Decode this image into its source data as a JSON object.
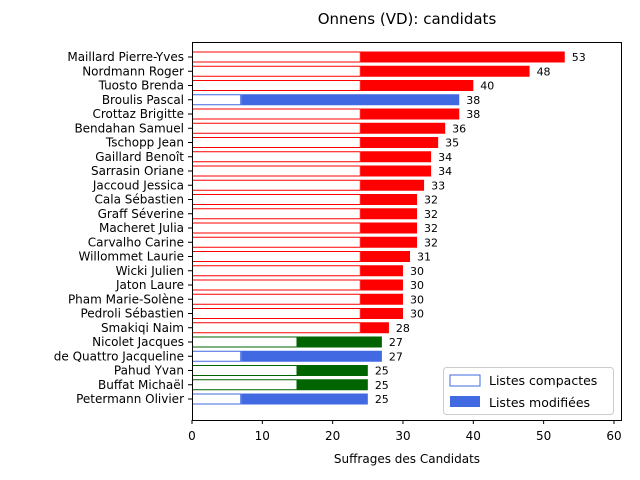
{
  "chart_data": {
    "type": "bar",
    "orientation": "horizontal",
    "title": "Onnens (VD): candidats",
    "xlabel": "Suffrages des Candidats",
    "ylabel": "",
    "xlim": [
      0,
      61
    ],
    "xticks": [
      0,
      10,
      20,
      30,
      40,
      50,
      60
    ],
    "grid": false,
    "legend_position": "lower right",
    "legend": [
      {
        "name": "Listes compactes",
        "style": "outline",
        "color": "#4169e1"
      },
      {
        "name": "Listes modifiées",
        "style": "filled",
        "color": "#4169e1"
      }
    ],
    "candidates": [
      {
        "name": "Maillard Pierre-Yves",
        "compact": 24,
        "total": 53,
        "color": "#ff0000"
      },
      {
        "name": "Nordmann Roger",
        "compact": 24,
        "total": 48,
        "color": "#ff0000"
      },
      {
        "name": "Tuosto Brenda",
        "compact": 24,
        "total": 40,
        "color": "#ff0000"
      },
      {
        "name": "Broulis Pascal",
        "compact": 7,
        "total": 38,
        "color": "#4169e1"
      },
      {
        "name": "Crottaz Brigitte",
        "compact": 24,
        "total": 38,
        "color": "#ff0000"
      },
      {
        "name": "Bendahan Samuel",
        "compact": 24,
        "total": 36,
        "color": "#ff0000"
      },
      {
        "name": "Tschopp Jean",
        "compact": 24,
        "total": 35,
        "color": "#ff0000"
      },
      {
        "name": "Gaillard Benoît",
        "compact": 24,
        "total": 34,
        "color": "#ff0000"
      },
      {
        "name": "Sarrasin Oriane",
        "compact": 24,
        "total": 34,
        "color": "#ff0000"
      },
      {
        "name": "Jaccoud Jessica",
        "compact": 24,
        "total": 33,
        "color": "#ff0000"
      },
      {
        "name": "Cala Sébastien",
        "compact": 24,
        "total": 32,
        "color": "#ff0000"
      },
      {
        "name": "Graff Séverine",
        "compact": 24,
        "total": 32,
        "color": "#ff0000"
      },
      {
        "name": "Macheret Julia",
        "compact": 24,
        "total": 32,
        "color": "#ff0000"
      },
      {
        "name": "Carvalho Carine",
        "compact": 24,
        "total": 32,
        "color": "#ff0000"
      },
      {
        "name": "Willommet Laurie",
        "compact": 24,
        "total": 31,
        "color": "#ff0000"
      },
      {
        "name": "Wicki Julien",
        "compact": 24,
        "total": 30,
        "color": "#ff0000"
      },
      {
        "name": "Jaton Laure",
        "compact": 24,
        "total": 30,
        "color": "#ff0000"
      },
      {
        "name": "Pham Marie-Solène",
        "compact": 24,
        "total": 30,
        "color": "#ff0000"
      },
      {
        "name": "Pedroli Sébastien",
        "compact": 24,
        "total": 30,
        "color": "#ff0000"
      },
      {
        "name": "Smakiqi Naim",
        "compact": 24,
        "total": 28,
        "color": "#ff0000"
      },
      {
        "name": "Nicolet Jacques",
        "compact": 15,
        "total": 27,
        "color": "#006400"
      },
      {
        "name": "de Quattro Jacqueline",
        "compact": 7,
        "total": 27,
        "color": "#4169e1"
      },
      {
        "name": "Pahud Yvan",
        "compact": 15,
        "total": 25,
        "color": "#006400"
      },
      {
        "name": "Buffat Michaël",
        "compact": 15,
        "total": 25,
        "color": "#006400"
      },
      {
        "name": "Petermann Olivier",
        "compact": 7,
        "total": 25,
        "color": "#4169e1"
      }
    ]
  }
}
